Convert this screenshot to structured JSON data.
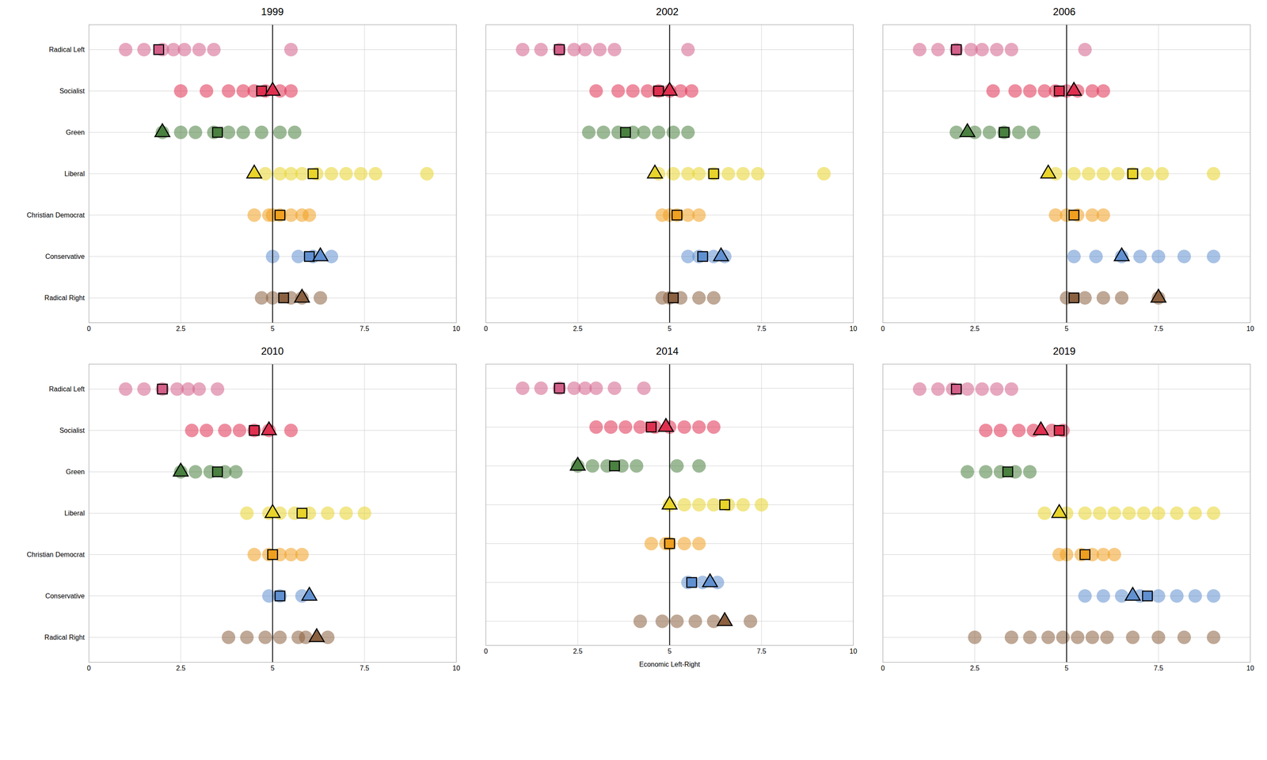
{
  "chart_data": [
    {
      "type": "scatter",
      "title": "1999",
      "categories": [
        "Radical Left",
        "Socialist",
        "Green",
        "Liberal",
        "Christian Democrat",
        "Conservative",
        "Radical Right"
      ],
      "colors": [
        "#d4608a",
        "#e03050",
        "#4a8040",
        "#e8d42a",
        "#f0a020",
        "#6090d0",
        "#8a6040"
      ],
      "xlim": [
        0,
        10
      ],
      "xticks": [
        0,
        2.5,
        5,
        7.5,
        10
      ],
      "grid": true,
      "vline": 5.0,
      "series": [
        {
          "marker": "circle",
          "values": [
            [
              1.0,
              1.5,
              2.0,
              2.3,
              2.6,
              3.0,
              3.4,
              5.5
            ],
            [
              2.5,
              3.2,
              3.8,
              4.2,
              4.5,
              4.8,
              5.2,
              5.5
            ],
            [
              2.0,
              2.5,
              2.9,
              3.4,
              3.8,
              4.2,
              4.7,
              5.2,
              5.6
            ],
            [
              4.8,
              5.2,
              5.5,
              5.8,
              6.2,
              6.6,
              7.0,
              7.4,
              7.8,
              9.2
            ],
            [
              4.5,
              4.9,
              5.0,
              5.2,
              5.5,
              5.8,
              6.0
            ],
            [
              5.0,
              5.7,
              6.1,
              6.6
            ],
            [
              4.7,
              5.0,
              5.5,
              5.8,
              6.3
            ]
          ]
        },
        {
          "marker": "square",
          "values": [
            1.9,
            4.7,
            3.5,
            6.1,
            5.2,
            6.0,
            5.3
          ]
        },
        {
          "marker": "triangle",
          "values": [
            null,
            5.0,
            2.0,
            4.5,
            null,
            6.3,
            5.8
          ]
        }
      ]
    },
    {
      "type": "scatter",
      "title": "2002",
      "categories": [
        "Radical Left",
        "Socialist",
        "Green",
        "Liberal",
        "Christian Democrat",
        "Conservative",
        "Radical Right"
      ],
      "colors": [
        "#d4608a",
        "#e03050",
        "#4a8040",
        "#e8d42a",
        "#f0a020",
        "#6090d0",
        "#8a6040"
      ],
      "xlim": [
        0,
        10
      ],
      "xticks": [
        0,
        2.5,
        5,
        7.5,
        10
      ],
      "grid": true,
      "vline": 5.0,
      "tick_labels": "x",
      "series": [
        {
          "marker": "circle",
          "values": [
            [
              1.0,
              1.5,
              2.0,
              2.4,
              2.7,
              3.1,
              3.5,
              5.5
            ],
            [
              3.0,
              3.6,
              4.0,
              4.4,
              4.7,
              5.0,
              5.3,
              5.6
            ],
            [
              2.8,
              3.2,
              3.6,
              4.0,
              4.3,
              4.7,
              5.1,
              5.5
            ],
            [
              4.7,
              5.1,
              5.5,
              5.8,
              6.2,
              6.6,
              7.0,
              7.4,
              9.2
            ],
            [
              4.8,
              5.0,
              5.2,
              5.5,
              5.8
            ],
            [
              5.5,
              5.8,
              6.2,
              6.5
            ],
            [
              4.8,
              5.0,
              5.3,
              5.8,
              6.2
            ]
          ]
        },
        {
          "marker": "square",
          "values": [
            2.0,
            4.7,
            3.8,
            6.2,
            5.2,
            5.9,
            5.1
          ]
        },
        {
          "marker": "triangle",
          "values": [
            null,
            5.0,
            null,
            4.6,
            null,
            6.4,
            null
          ]
        }
      ]
    },
    {
      "type": "scatter",
      "title": "2006",
      "categories": [
        "Radical Left",
        "Socialist",
        "Green",
        "Liberal",
        "Christian Democrat",
        "Conservative",
        "Radical Right"
      ],
      "colors": [
        "#d4608a",
        "#e03050",
        "#4a8040",
        "#e8d42a",
        "#f0a020",
        "#6090d0",
        "#8a6040"
      ],
      "xlim": [
        0,
        10
      ],
      "xticks": [
        0,
        2.5,
        5,
        7.5,
        10
      ],
      "grid": true,
      "vline": 5.0,
      "tick_labels": "x",
      "series": [
        {
          "marker": "circle",
          "values": [
            [
              1.0,
              1.5,
              2.0,
              2.4,
              2.7,
              3.1,
              3.5,
              5.5
            ],
            [
              3.0,
              3.6,
              4.0,
              4.4,
              4.7,
              5.0,
              5.3,
              5.7,
              6.0
            ],
            [
              2.0,
              2.5,
              2.9,
              3.3,
              3.7,
              4.1
            ],
            [
              4.7,
              5.2,
              5.6,
              6.0,
              6.4,
              6.8,
              7.2,
              7.6,
              9.0
            ],
            [
              4.7,
              5.0,
              5.3,
              5.7,
              6.0
            ],
            [
              5.2,
              5.8,
              6.5,
              7.0,
              7.5,
              8.2,
              9.0
            ],
            [
              5.0,
              5.5,
              6.0,
              6.5,
              7.5
            ]
          ]
        },
        {
          "marker": "square",
          "values": [
            2.0,
            4.8,
            3.3,
            6.8,
            5.2,
            null,
            5.2
          ]
        },
        {
          "marker": "triangle",
          "values": [
            null,
            5.2,
            2.3,
            4.5,
            null,
            6.5,
            7.5
          ]
        }
      ]
    },
    {
      "type": "scatter",
      "title": "2010",
      "categories": [
        "Radical Left",
        "Socialist",
        "Green",
        "Liberal",
        "Christian Democrat",
        "Conservative",
        "Radical Right"
      ],
      "colors": [
        "#d4608a",
        "#e03050",
        "#4a8040",
        "#e8d42a",
        "#f0a020",
        "#6090d0",
        "#8a6040"
      ],
      "xlim": [
        0,
        10
      ],
      "xticks": [
        0,
        2.5,
        5,
        7.5,
        10
      ],
      "grid": true,
      "vline": 5.0,
      "series": [
        {
          "marker": "circle",
          "values": [
            [
              1.0,
              1.5,
              2.0,
              2.4,
              2.7,
              3.0,
              3.5
            ],
            [
              2.8,
              3.2,
              3.7,
              4.1,
              4.5,
              4.9,
              5.5
            ],
            [
              2.5,
              2.9,
              3.3,
              3.7,
              4.0
            ],
            [
              4.3,
              4.9,
              5.2,
              5.6,
              6.0,
              6.5,
              7.0,
              7.5
            ],
            [
              4.5,
              4.9,
              5.2,
              5.5,
              5.8
            ],
            [
              4.9,
              5.2,
              5.8
            ],
            [
              3.8,
              4.3,
              4.8,
              5.2,
              5.7,
              5.9,
              6.5
            ]
          ]
        },
        {
          "marker": "square",
          "values": [
            2.0,
            4.5,
            3.5,
            5.8,
            5.0,
            5.2,
            null
          ]
        },
        {
          "marker": "triangle",
          "values": [
            null,
            4.9,
            2.5,
            5.0,
            null,
            6.0,
            6.2
          ]
        }
      ]
    },
    {
      "type": "scatter",
      "title": "2014",
      "xlabel": "Economic Left-Right",
      "categories": [
        "Radical Left",
        "Socialist",
        "Green",
        "Liberal",
        "Christian Democrat",
        "Conservative",
        "Radical Right"
      ],
      "colors": [
        "#d4608a",
        "#e03050",
        "#4a8040",
        "#e8d42a",
        "#f0a020",
        "#6090d0",
        "#8a6040"
      ],
      "xlim": [
        0,
        10
      ],
      "xticks": [
        0,
        2.5,
        5,
        7.5,
        10
      ],
      "grid": true,
      "vline": 5.0,
      "tick_labels": "x",
      "series": [
        {
          "marker": "circle",
          "values": [
            [
              1.0,
              1.5,
              2.0,
              2.4,
              2.7,
              3.0,
              3.5,
              4.3
            ],
            [
              3.0,
              3.4,
              3.8,
              4.2,
              4.6,
              5.0,
              5.4,
              5.8,
              6.2
            ],
            [
              2.5,
              2.9,
              3.3,
              3.7,
              4.1,
              5.2,
              5.8
            ],
            [
              5.0,
              5.4,
              5.8,
              6.2,
              6.6,
              7.0,
              7.5
            ],
            [
              4.5,
              4.9,
              5.0,
              5.4,
              5.8
            ],
            [
              5.5,
              5.9,
              6.3
            ],
            [
              4.2,
              4.8,
              5.2,
              5.7,
              6.2,
              7.2
            ]
          ]
        },
        {
          "marker": "square",
          "values": [
            2.0,
            4.5,
            3.5,
            6.5,
            5.0,
            5.6,
            null
          ]
        },
        {
          "marker": "triangle",
          "values": [
            null,
            4.9,
            2.5,
            5.0,
            null,
            6.1,
            6.5
          ]
        }
      ]
    },
    {
      "type": "scatter",
      "title": "2019",
      "categories": [
        "Radical Left",
        "Socialist",
        "Green",
        "Liberal",
        "Christian Democrat",
        "Conservative",
        "Radical Right"
      ],
      "colors": [
        "#d4608a",
        "#e03050",
        "#4a8040",
        "#e8d42a",
        "#f0a020",
        "#6090d0",
        "#8a6040"
      ],
      "xlim": [
        0,
        10
      ],
      "xticks": [
        0,
        2.5,
        5,
        7.5,
        10
      ],
      "grid": true,
      "vline": 5.0,
      "tick_labels": "x",
      "series": [
        {
          "marker": "circle",
          "values": [
            [
              1.0,
              1.5,
              1.9,
              2.3,
              2.7,
              3.1,
              3.5
            ],
            [
              2.8,
              3.2,
              3.7,
              4.1,
              4.6,
              4.9
            ],
            [
              2.3,
              2.8,
              3.2,
              3.6,
              4.0
            ],
            [
              4.4,
              5.0,
              5.5,
              5.9,
              6.3,
              6.7,
              7.1,
              7.5,
              8.0,
              8.5,
              9.0
            ],
            [
              4.8,
              5.0,
              5.4,
              5.7,
              6.0,
              6.3
            ],
            [
              5.5,
              6.0,
              6.5,
              7.0,
              7.5,
              8.0,
              8.5,
              9.0
            ],
            [
              2.5,
              3.5,
              4.0,
              4.5,
              4.9,
              5.3,
              5.7,
              6.1,
              6.8,
              7.5,
              8.2,
              9.0
            ]
          ]
        },
        {
          "marker": "square",
          "values": [
            2.0,
            4.8,
            3.4,
            null,
            5.5,
            7.2,
            null
          ]
        },
        {
          "marker": "triangle",
          "values": [
            null,
            4.3,
            null,
            4.8,
            null,
            6.8,
            null
          ]
        }
      ]
    }
  ]
}
